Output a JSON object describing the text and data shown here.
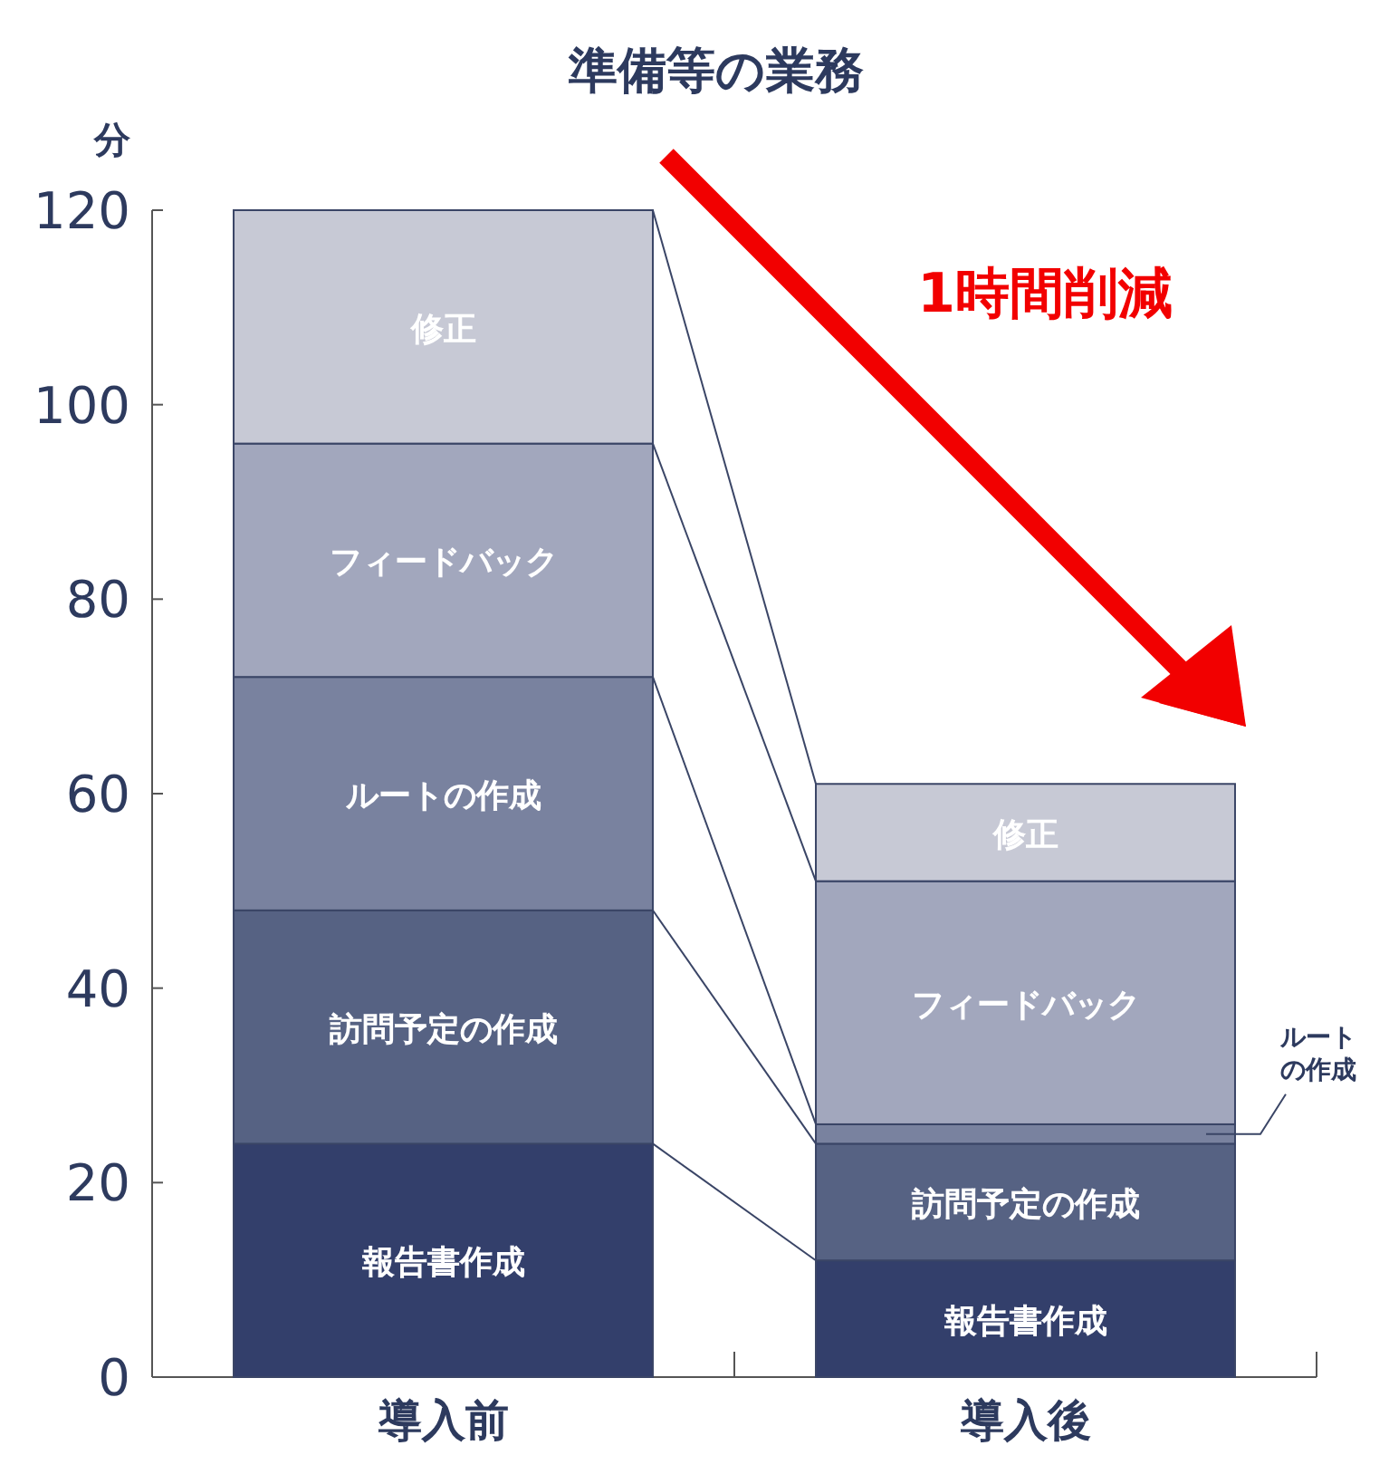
{
  "chart_data": {
    "type": "bar",
    "stacked": true,
    "title": "準備等の業務",
    "ylabel": "分",
    "categories": [
      "導入前",
      "導入後"
    ],
    "series": [
      {
        "name": "報告書作成",
        "color": "#333f6b",
        "values": [
          24,
          12
        ]
      },
      {
        "name": "訪問予定の作成",
        "color": "#566283",
        "values": [
          24,
          12
        ]
      },
      {
        "name": "ルートの作成",
        "color": "#79829f",
        "values": [
          24,
          2
        ]
      },
      {
        "name": "フィードバック",
        "color": "#a2a7bd",
        "values": [
          24,
          25
        ]
      },
      {
        "name": "修正",
        "color": "#c7c9d5",
        "values": [
          24,
          10
        ]
      }
    ],
    "ylim": [
      0,
      120
    ],
    "yticks": [
      0,
      20,
      40,
      60,
      80,
      100,
      120
    ],
    "annotations": [
      "1時間削減"
    ],
    "grid": false
  }
}
